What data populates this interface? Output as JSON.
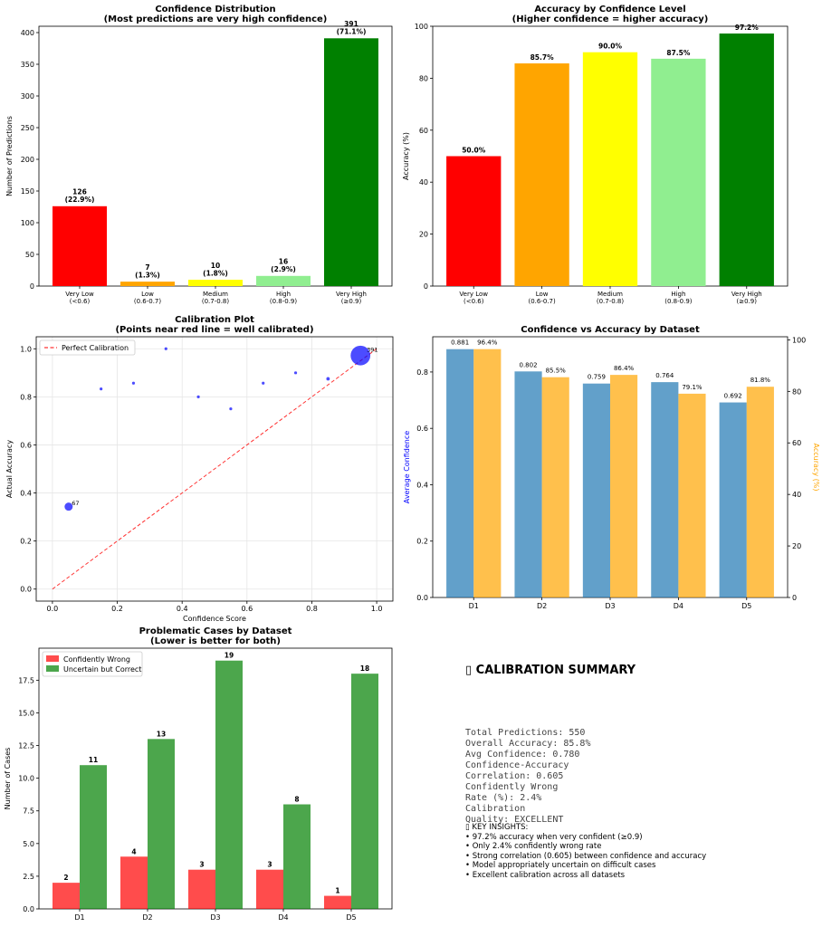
{
  "chart_data": [
    {
      "type": "bar",
      "title": "Confidence Distribution",
      "subtitle": "(Most predictions are very high confidence)",
      "categories": [
        "Very Low\n(<0.6)",
        "Low\n(0.6-0.7)",
        "Medium\n(0.7-0.8)",
        "High\n(0.8-0.9)",
        "Very High\n(≥0.9)"
      ],
      "values": [
        126,
        7,
        10,
        16,
        391
      ],
      "labels": [
        "126\n(22.9%)",
        "7\n(1.3%)",
        "10\n(1.8%)",
        "16\n(2.9%)",
        "391\n(71.1%)"
      ],
      "colors": [
        "#ff0000",
        "#ffa500",
        "#ffff00",
        "#90ee90",
        "#008000"
      ],
      "ylabel": "Number of Predictions",
      "xlabel": "",
      "ylim": [
        0,
        410
      ],
      "yticks": [
        0,
        50,
        100,
        150,
        200,
        250,
        300,
        350,
        400
      ]
    },
    {
      "type": "bar",
      "title": "Accuracy by Confidence Level",
      "subtitle": "(Higher confidence = higher accuracy)",
      "categories": [
        "Very Low\n(<0.6)",
        "Low\n(0.6-0.7)",
        "Medium\n(0.7-0.8)",
        "High\n(0.8-0.9)",
        "Very High\n(≥0.9)"
      ],
      "values": [
        50.0,
        85.7,
        90.0,
        87.5,
        97.2
      ],
      "labels": [
        "50.0%",
        "85.7%",
        "90.0%",
        "87.5%",
        "97.2%"
      ],
      "colors": [
        "#ff0000",
        "#ffa500",
        "#ffff00",
        "#90ee90",
        "#008000"
      ],
      "ylabel": "Accuracy (%)",
      "xlabel": "",
      "ylim": [
        0,
        100
      ],
      "yticks": [
        0,
        20,
        40,
        60,
        80,
        100
      ]
    },
    {
      "type": "scatter",
      "title": "Calibration Plot",
      "subtitle": "(Points near red line = well calibrated)",
      "xlabel": "Confidence Score",
      "ylabel": "Actual Accuracy",
      "xlim": [
        -0.05,
        1.05
      ],
      "ylim": [
        -0.05,
        1.05
      ],
      "xticks": [
        0.0,
        0.2,
        0.4,
        0.6,
        0.8,
        1.0
      ],
      "yticks": [
        0.0,
        0.2,
        0.4,
        0.6,
        0.8,
        1.0
      ],
      "points": [
        {
          "x": 0.05,
          "y": 0.343,
          "n": 67,
          "label": "67"
        },
        {
          "x": 0.15,
          "y": 0.833,
          "n": 6,
          "label": ""
        },
        {
          "x": 0.25,
          "y": 0.857,
          "n": 5,
          "label": ""
        },
        {
          "x": 0.35,
          "y": 1.0,
          "n": 4,
          "label": ""
        },
        {
          "x": 0.45,
          "y": 0.8,
          "n": 3,
          "label": ""
        },
        {
          "x": 0.55,
          "y": 0.75,
          "n": 4,
          "label": ""
        },
        {
          "x": 0.65,
          "y": 0.857,
          "n": 5,
          "label": ""
        },
        {
          "x": 0.75,
          "y": 0.9,
          "n": 8,
          "label": ""
        },
        {
          "x": 0.85,
          "y": 0.875,
          "n": 12,
          "label": ""
        },
        {
          "x": 0.95,
          "y": 0.972,
          "n": 391,
          "label": "391"
        }
      ],
      "reference_line": {
        "name": "Perfect Calibration",
        "from": [
          0,
          0
        ],
        "to": [
          1,
          1
        ],
        "color": "#ff0000"
      },
      "point_color": "#0000ff",
      "grid": true,
      "legend": "top-left"
    },
    {
      "type": "bar",
      "title": "Confidence vs Accuracy by Dataset",
      "categories": [
        "D1",
        "D2",
        "D3",
        "D4",
        "D5"
      ],
      "series": [
        {
          "name": "Average Confidence",
          "axis": "left",
          "color": "#1f77b4",
          "values": [
            0.881,
            0.802,
            0.759,
            0.764,
            0.692
          ],
          "labels": [
            "0.881",
            "0.802",
            "0.759",
            "0.764",
            "0.692"
          ]
        },
        {
          "name": "Accuracy (%)",
          "axis": "right",
          "color": "#ffa500",
          "values": [
            96.4,
            85.5,
            86.4,
            79.1,
            81.8
          ],
          "labels": [
            "96.4%",
            "85.5%",
            "86.4%",
            "79.1%",
            "81.8%"
          ]
        }
      ],
      "ylabel": "Average Confidence",
      "ylabel_right": "Accuracy (%)",
      "ylim": [
        0,
        0.925
      ],
      "ylim_right": [
        0,
        101.2
      ],
      "yticks": [
        0.0,
        0.2,
        0.4,
        0.6,
        0.8
      ],
      "yticks_right": [
        0,
        20,
        40,
        60,
        80,
        100
      ],
      "xlabel": ""
    },
    {
      "type": "bar",
      "title": "Problematic Cases by Dataset",
      "subtitle": "(Lower is better for both)",
      "categories": [
        "D1",
        "D2",
        "D3",
        "D4",
        "D5"
      ],
      "series": [
        {
          "name": "Confidently Wrong",
          "color": "#ff0000",
          "values": [
            2,
            4,
            3,
            3,
            1
          ]
        },
        {
          "name": "Uncertain but Correct",
          "color": "#008000",
          "values": [
            11,
            13,
            19,
            8,
            18
          ]
        }
      ],
      "ylabel": "Number of Cases",
      "xlabel": "",
      "ylim": [
        0,
        19.95
      ],
      "yticks": [
        0.0,
        2.5,
        5.0,
        7.5,
        10.0,
        12.5,
        15.0,
        17.5
      ],
      "legend": "top-left"
    }
  ],
  "summary": {
    "title": "▯ CALIBRATION SUMMARY",
    "stats": "Total Predictions: 550\nOverall Accuracy: 85.8%\nAvg Confidence: 0.780\nConfidence-Accuracy\nCorrelation: 0.605\nConfidently Wrong\nRate (%): 2.4%\nCalibration\nQuality: EXCELLENT",
    "insights": "▯ KEY INSIGHTS:\n• 97.2% accuracy when very confident (≥0.9)\n• Only 2.4% confidently wrong rate\n• Strong correlation (0.605) between confidence and accuracy\n• Model appropriately uncertain on difficult cases\n• Excellent calibration across all datasets"
  }
}
